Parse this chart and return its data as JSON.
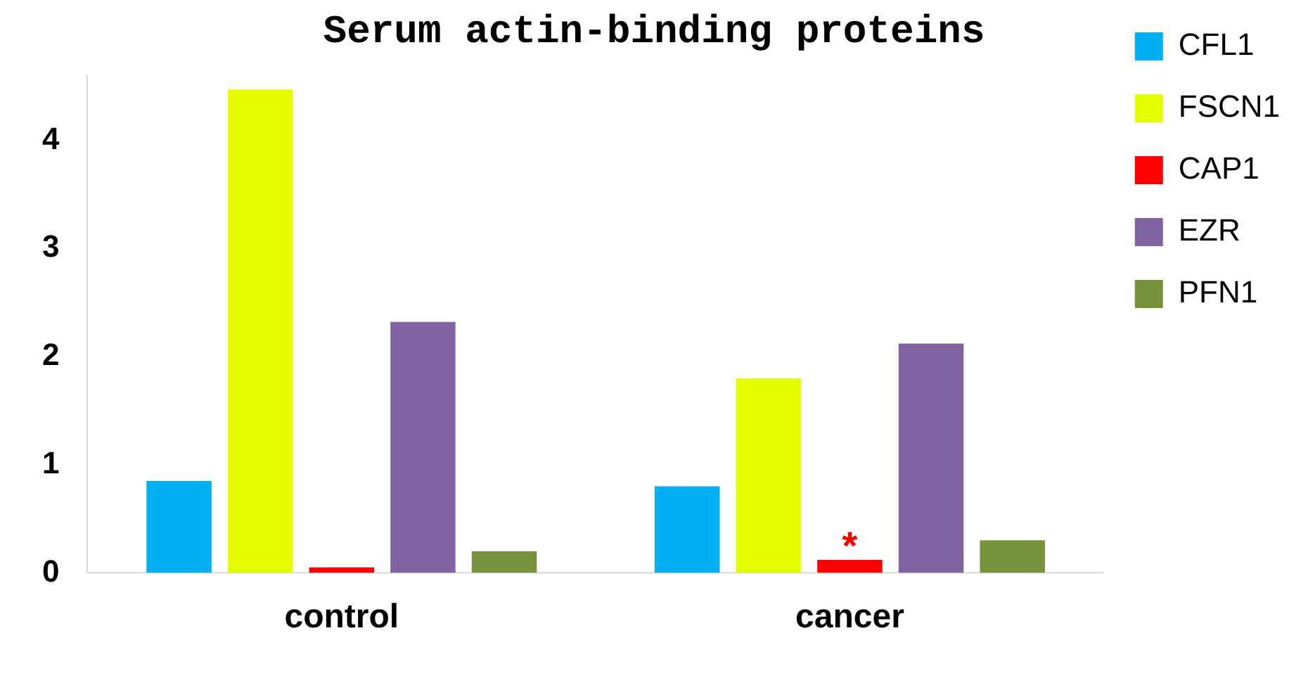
{
  "chart_data": {
    "type": "bar",
    "title": "Serum actin-binding proteins",
    "categories": [
      "control",
      "cancer"
    ],
    "series": [
      {
        "name": "CFL1",
        "color": "#00b0f0",
        "values": [
          0.85,
          0.8
        ]
      },
      {
        "name": "FSCN1",
        "color": "#e6ff00",
        "values": [
          4.47,
          1.8
        ]
      },
      {
        "name": "CAP1",
        "color": "#ff0000",
        "values": [
          0.05,
          0.12
        ]
      },
      {
        "name": "EZR",
        "color": "#8064a2",
        "values": [
          2.32,
          2.12
        ]
      },
      {
        "name": "PFN1",
        "color": "#77933c",
        "values": [
          0.2,
          0.3
        ]
      }
    ],
    "ylim": [
      0,
      4.6
    ],
    "yticks": [
      0,
      1,
      2,
      3,
      4
    ],
    "grid": false,
    "legend": "top right",
    "annotations": [
      {
        "text": "*",
        "x": "cancer",
        "y": 0.12
      }
    ]
  }
}
